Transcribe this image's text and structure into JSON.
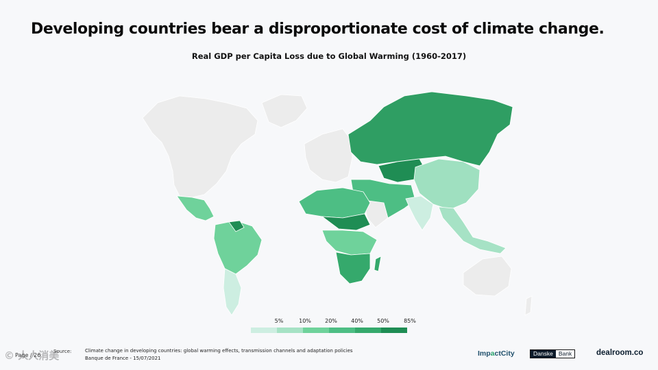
{
  "slide": {
    "headline": "Developing countries bear a disproportionate cost of climate change.",
    "map_title": "Real GDP per Capita Loss due to Global Warming (1960-2017)"
  },
  "legend": {
    "labels": [
      "5%",
      "10%",
      "20%",
      "40%",
      "50%",
      "85%"
    ],
    "colors": [
      "#cdeee1",
      "#a6e2c5",
      "#6fd29b",
      "#4dbe84",
      "#35a96c",
      "#1f8d54"
    ]
  },
  "map_colors": {
    "no_data": "#ececec",
    "russia": "#2f9e63",
    "central_asia": "#1f8d54",
    "china": "#9fe0c0",
    "india": "#cdeee1",
    "middle_east": "#4dbe84",
    "north_africa": "#4dbe84",
    "sahel": "#1f8d54",
    "southern_africa": "#35a96c",
    "latin_america": "#6fd29b",
    "chile_argentina": "#cdeee1",
    "se_asia": "#a6e2c5"
  },
  "footer": {
    "page": "Page / 26",
    "source_label": "Source:",
    "citation_line1": "Climate change in developing countries: global warming effects, transmission channels and adaptation policies",
    "citation_line2": "Banque de France - 15/07/2021",
    "watermark": "© 人人消美"
  },
  "logos": {
    "impactcity_pre": "Imp",
    "impactcity_accent": "a",
    "impactcity_post": "ctCity",
    "danske_a": "Danske",
    "danske_b": "Bank",
    "dealroom": "dealroom.co"
  }
}
